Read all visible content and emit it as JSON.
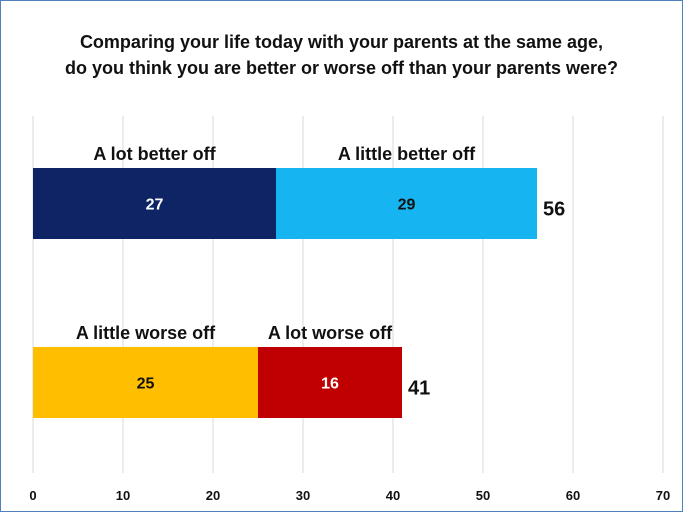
{
  "chart_data": {
    "type": "bar",
    "orientation": "horizontal",
    "stacked": true,
    "title": "Comparing your life today with your parents at the same age,",
    "subtitle": "do you think you are better or worse off than your parents were?",
    "xlim": [
      0,
      70
    ],
    "x_ticks": [
      "0",
      "10",
      "20",
      "30",
      "40",
      "50",
      "60",
      "70"
    ],
    "grid": true,
    "bars": [
      {
        "total": 56,
        "segments": [
          {
            "label": "A lot better off",
            "value": 27,
            "color": "#0e2465",
            "value_color": "#ffffff"
          },
          {
            "label": "A little better off",
            "value": 29,
            "color": "#16b4f0",
            "value_color": "#111111"
          }
        ]
      },
      {
        "total": 41,
        "segments": [
          {
            "label": "A little worse off",
            "value": 25,
            "color": "#ffbf00",
            "value_color": "#111111"
          },
          {
            "label": "A lot worse off",
            "value": 16,
            "color": "#c00000",
            "value_color": "#ffffff"
          }
        ]
      }
    ]
  }
}
